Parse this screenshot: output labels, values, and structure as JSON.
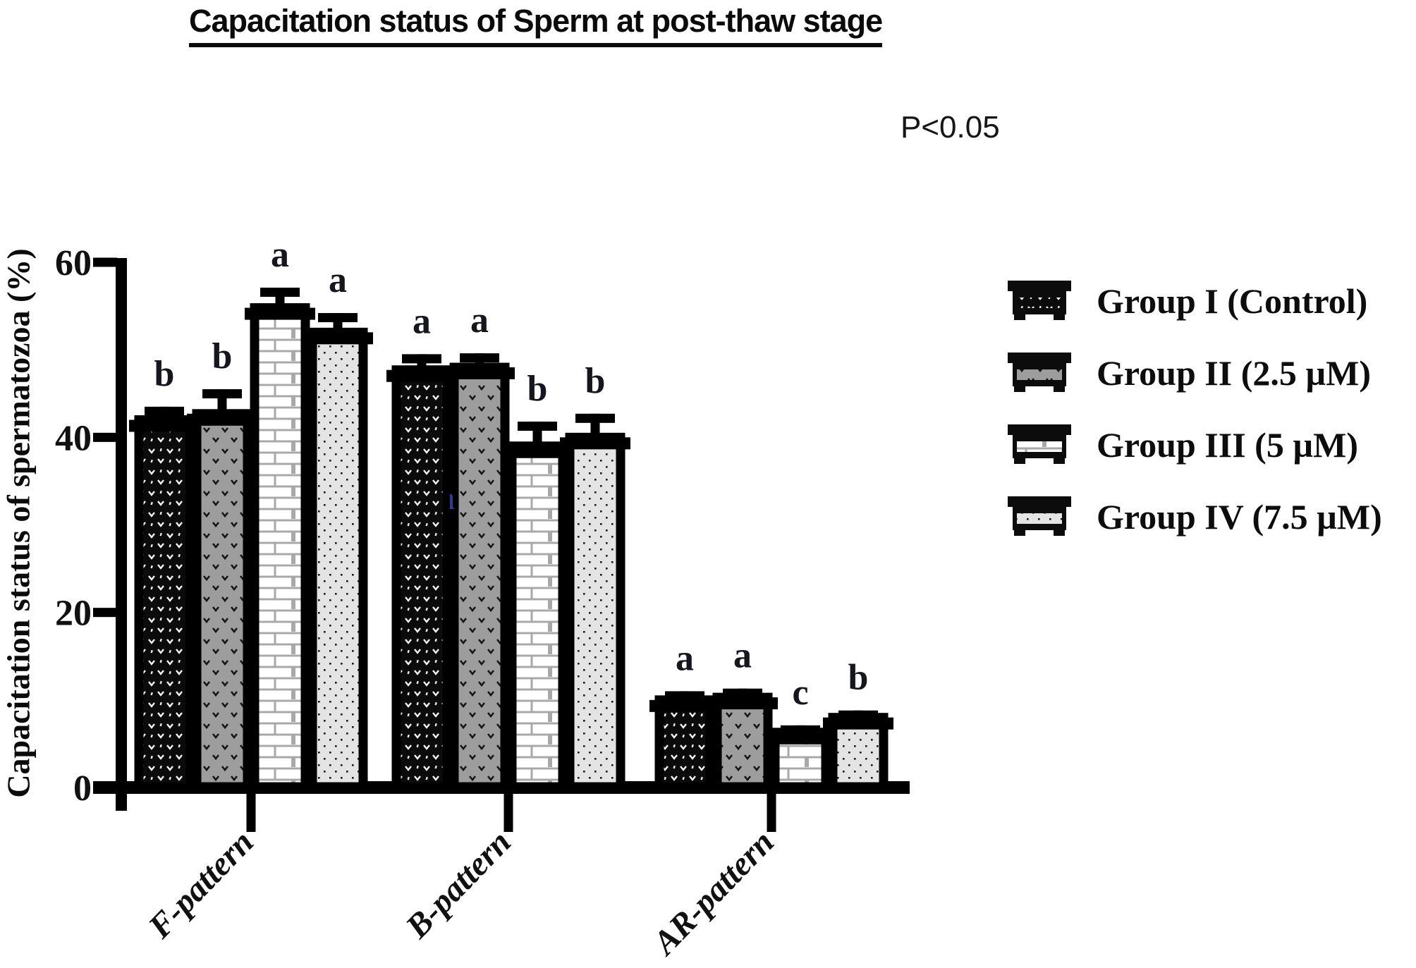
{
  "title": "Capacitation status of Sperm at post-thaw stage",
  "p_value_note": "P<0.05",
  "y_axis_label": "Capacitation status of spermatozoa (%)",
  "stray_letter": "a",
  "legend": {
    "items": [
      {
        "label": "Group I (Control)",
        "pattern": "black-speckle"
      },
      {
        "label": "Group II (2.5 µM)",
        "pattern": "gray-chevron"
      },
      {
        "label": "Group III (5 µM)",
        "pattern": "white-brick"
      },
      {
        "label": "Group IV (7.5 µM)",
        "pattern": "light-dots"
      }
    ]
  },
  "chart_data": {
    "type": "bar",
    "title": "Capacitation status of Sperm at post-thaw stage",
    "annotation": "P<0.05",
    "xlabel": "",
    "ylabel": "Capacitation status of spermatozoa (%)",
    "ylim": [
      0,
      60
    ],
    "yticks": [
      0,
      20,
      40,
      60
    ],
    "grid": false,
    "legend_position": "right",
    "categories": [
      "F-pattern",
      "B-pattern",
      "AR-pattern"
    ],
    "series": [
      {
        "name": "Group I (Control)",
        "pattern": "black-speckle",
        "values": [
          42.0,
          47.7,
          10.0
        ],
        "errors": [
          1.5,
          1.8,
          1.0
        ],
        "sig_letters": [
          "b",
          "a",
          "a"
        ]
      },
      {
        "name": "Group II (2.5 µM)",
        "pattern": "gray-chevron",
        "values": [
          42.7,
          48.0,
          10.3
        ],
        "errors": [
          2.8,
          1.6,
          1.0
        ],
        "sig_letters": [
          "b",
          "a",
          "a"
        ]
      },
      {
        "name": "Group III (5 µM)",
        "pattern": "white-brick",
        "values": [
          54.8,
          39.0,
          6.3
        ],
        "errors": [
          2.3,
          2.8,
          0.8
        ],
        "sig_letters": [
          "a",
          "b",
          "c"
        ]
      },
      {
        "name": "Group IV (7.5 µM)",
        "pattern": "light-dots",
        "values": [
          52.0,
          40.0,
          8.0
        ],
        "errors": [
          2.2,
          2.7,
          0.8
        ],
        "sig_letters": [
          "a",
          "b",
          "b"
        ]
      }
    ],
    "colors": {
      "bar_outline": "#000000",
      "black_fill": "#0b0b0b",
      "gray_fill": "#9d9d9d",
      "white_fill": "#ffffff",
      "lightgray_fill": "#e4e4e4",
      "brick_line": "#a8a8a8",
      "text": "#111111",
      "sig_letter": "#16161f",
      "stray_letter_color": "#2a3d8f"
    }
  }
}
